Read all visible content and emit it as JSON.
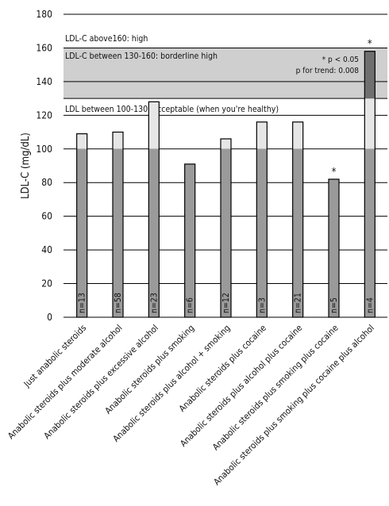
{
  "chart_data": {
    "type": "bar",
    "ylabel": "LDL-C (mg/dL)",
    "ylim": [
      0,
      180
    ],
    "yticks": [
      0,
      20,
      40,
      60,
      80,
      100,
      120,
      140,
      160,
      180
    ],
    "grid": true,
    "categories": [
      "Just anabolic steroids",
      "Anabolic steroids plus moderate alcohol",
      "Anabolic steroids plus excessive alcohol",
      "Anabolic steroids plus smoking",
      "Anabolic steroids plus alcohol + smoking",
      "Anabolic steroids plus cocaine",
      "Anabolic steroids plus alcohol plus cocaine",
      "Anabolic steroids plus smoking plus cocaine",
      "Anabolic steroids plus smoking plus cocaine plus alcohol"
    ],
    "values": [
      109,
      110,
      128,
      91,
      106,
      116,
      116,
      82,
      158
    ],
    "n_labels": [
      "n=13",
      "n=58",
      "n=23",
      "n=6",
      "n=12",
      "n=3",
      "n=21",
      "n=5",
      "n=4"
    ],
    "significant": [
      false,
      false,
      false,
      false,
      false,
      false,
      false,
      true,
      true
    ],
    "significance_marker": "*",
    "zones": [
      {
        "label": "LDL-C above160: high",
        "from": 160,
        "to": 180,
        "color": "#ffffff"
      },
      {
        "label": "LDL-C between 130-160: borderline high",
        "from": 130,
        "to": 160,
        "color": "#cfcfcf"
      },
      {
        "label": "LDL between 100-130: acceptable (when you're healthy)",
        "from": 100,
        "to": 130,
        "color": "#ffffff"
      }
    ],
    "annotations": [
      "* p < 0.05",
      "p for trend: 0.008"
    ],
    "colors": {
      "bar_below_100": "#9a9a9a",
      "bar_100_130": "#e6e6e6",
      "bar_130_160": "#6f6f6f",
      "bar_above_160": "#555555",
      "band_borderline": "#cfcfcf"
    }
  }
}
